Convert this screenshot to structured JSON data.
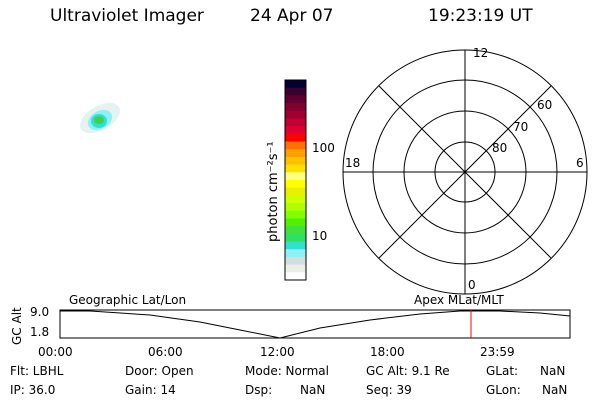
{
  "header": {
    "instrument": "Ultraviolet Imager",
    "date": "24 Apr 07",
    "time": "19:23:19 UT"
  },
  "colorbar": {
    "label": "photon cm⁻²s⁻¹",
    "ticks": [
      "100",
      "10"
    ],
    "colors": [
      "#000033",
      "#3a0030",
      "#5c0030",
      "#800030",
      "#a00030",
      "#c00030",
      "#e00030",
      "#ff0000",
      "#ff7000",
      "#ffa000",
      "#ffc000",
      "#ffe000",
      "#ffff80",
      "#ffff00",
      "#e8f000",
      "#d0ff00",
      "#b0ff00",
      "#80ff00",
      "#50f000",
      "#40e040",
      "#30e060",
      "#30e0d0",
      "#90f0f8",
      "#d0e0e0",
      "#e8f0e8",
      "#ffffff"
    ]
  },
  "polar": {
    "mlt_labels": {
      "top": "12",
      "bottom": "0",
      "left": "18",
      "right": "6"
    },
    "lat_labels": [
      "60",
      "70",
      "80"
    ]
  },
  "timeline": {
    "left_label": "Geographic Lat/Lon",
    "right_label": "Apex MLat/MLT",
    "y_axis_title": "GC Alt",
    "y_ticks": [
      "9.0",
      "1.8"
    ],
    "x_ticks": [
      "00:00",
      "06:00",
      "12:00",
      "18:00",
      "23:59"
    ],
    "current_time_marker_color": "#ff0000"
  },
  "status": {
    "flt": "Flt: LBHL",
    "ip": "IP: 36.0",
    "door": "Door: Open",
    "gain": "Gain: 14",
    "mode": "Mode: Normal",
    "dsp_label": "Dsp:",
    "dsp_value": "NaN",
    "gc_alt": "GC Alt: 9.1 Re",
    "seq": "Seq: 39",
    "glat_label": "GLat:",
    "glat_value": "NaN",
    "glon_label": "GLon:",
    "glon_value": "NaN"
  }
}
